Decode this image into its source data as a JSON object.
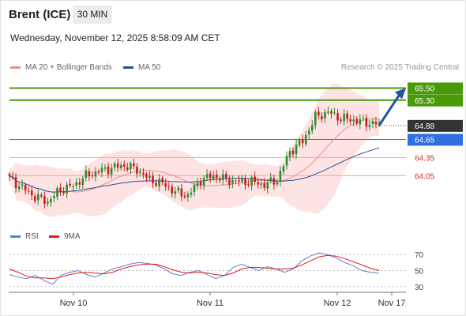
{
  "header": {
    "instrument": "Brent (ICE)",
    "interval": "30 MIN",
    "timestamp": "Wednesday, November 12, 2025 8:58:09 AM CET"
  },
  "legend": {
    "items": [
      {
        "label": "MA 20 + Bollinger Bands",
        "color": "#f08a8a"
      },
      {
        "label": "MA 50",
        "color": "#2b4f9c"
      }
    ],
    "credit": "Research © 2025 Trading Central"
  },
  "colors": {
    "up": "#2e8b2e",
    "down": "#c81e1e",
    "ma20": "#f08a8a",
    "bb_fill": "#fde3e3",
    "ma50": "#2b4f9c",
    "target": "#4a9a0a",
    "pivot": "#2f6fe0",
    "support": "#f5a3a3",
    "support_text": "#d9301e",
    "current": "#333333",
    "arrow": "#2255a0",
    "rsi": "#5b82d8",
    "rsi_ma": "#dd1c1c"
  },
  "chart_data": [
    {
      "type": "candlestick",
      "title": "Brent (ICE) 30 MIN",
      "x_ticks": [
        "Nov 10",
        "Nov 11",
        "Nov 12",
        "Nov 17"
      ],
      "ylim": [
        63.4,
        65.65
      ],
      "current_price": "64.88",
      "levels": [
        {
          "value": 65.5,
          "label": "65.50",
          "kind": "resistance"
        },
        {
          "value": 65.3,
          "label": "65.30",
          "kind": "resistance"
        },
        {
          "value": 64.65,
          "label": "64.65",
          "kind": "pivot"
        },
        {
          "value": 64.35,
          "label": "64.35",
          "kind": "support"
        },
        {
          "value": 64.05,
          "label": "64.05",
          "kind": "support"
        }
      ],
      "ohlc_anchors": [
        {
          "i": 0,
          "c": 64.0
        },
        {
          "i": 4,
          "c": 63.85
        },
        {
          "i": 8,
          "c": 63.7
        },
        {
          "i": 12,
          "c": 63.62
        },
        {
          "i": 16,
          "c": 63.82
        },
        {
          "i": 20,
          "c": 63.88
        },
        {
          "i": 24,
          "c": 64.05
        },
        {
          "i": 28,
          "c": 64.12
        },
        {
          "i": 32,
          "c": 64.18
        },
        {
          "i": 36,
          "c": 64.22
        },
        {
          "i": 40,
          "c": 64.15
        },
        {
          "i": 44,
          "c": 63.98
        },
        {
          "i": 48,
          "c": 63.92
        },
        {
          "i": 52,
          "c": 63.78
        },
        {
          "i": 56,
          "c": 63.72
        },
        {
          "i": 60,
          "c": 63.98
        },
        {
          "i": 64,
          "c": 64.05
        },
        {
          "i": 68,
          "c": 63.98
        },
        {
          "i": 72,
          "c": 63.95
        },
        {
          "i": 76,
          "c": 63.95
        },
        {
          "i": 80,
          "c": 63.9
        },
        {
          "i": 84,
          "c": 63.98
        },
        {
          "i": 88,
          "c": 64.45
        },
        {
          "i": 92,
          "c": 64.62
        },
        {
          "i": 96,
          "c": 65.02
        },
        {
          "i": 100,
          "c": 65.1
        },
        {
          "i": 104,
          "c": 65.0
        },
        {
          "i": 108,
          "c": 64.97
        },
        {
          "i": 112,
          "c": 64.93
        },
        {
          "i": 116,
          "c": 64.9
        }
      ],
      "bars_count": 117,
      "forecast_arrow": {
        "from_value": 64.88,
        "to_value": 65.5
      }
    },
    {
      "type": "line",
      "title": "RSI",
      "series": [
        {
          "name": "RSI",
          "values": [
            45,
            42,
            40,
            44,
            38,
            33,
            44,
            48,
            50,
            45,
            42,
            47,
            52,
            55,
            58,
            60,
            59,
            57,
            52,
            46,
            44,
            48,
            50,
            45,
            40,
            44,
            54,
            58,
            54,
            50,
            55,
            52,
            48,
            52,
            62,
            68,
            72,
            70,
            66,
            60,
            56,
            50,
            48,
            47
          ]
        },
        {
          "name": "9MA",
          "values": [
            52,
            48,
            43,
            41,
            41,
            40,
            42,
            45,
            47,
            48,
            47,
            46,
            48,
            52,
            55,
            57,
            58,
            58,
            55,
            51,
            48,
            47,
            48,
            47,
            45,
            44,
            47,
            52,
            54,
            54,
            53,
            52,
            52,
            53,
            57,
            62,
            67,
            69,
            68,
            65,
            61,
            57,
            53,
            50
          ]
        }
      ],
      "yticks": [
        70,
        50,
        30
      ],
      "ylim": [
        25,
        80
      ]
    }
  ]
}
